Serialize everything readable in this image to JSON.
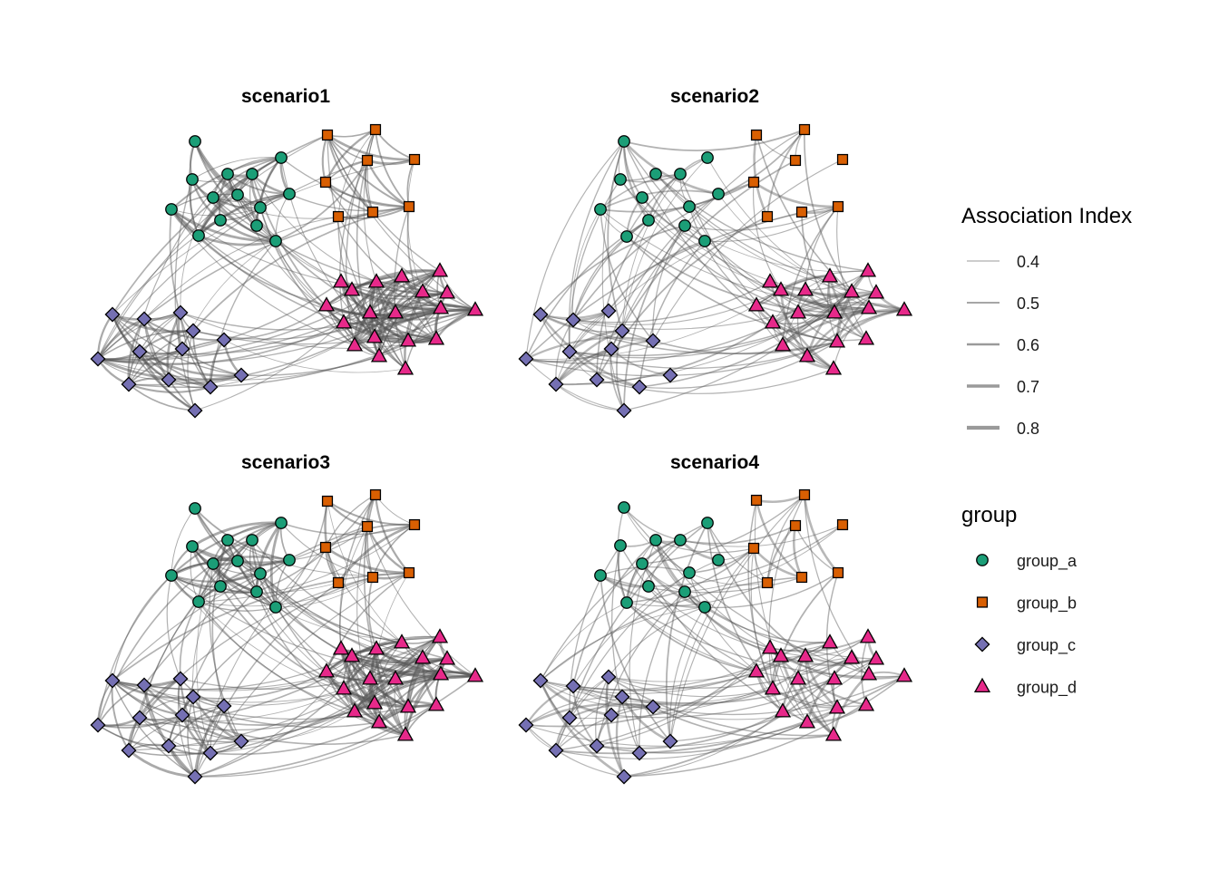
{
  "panels": [
    {
      "title": "scenario1"
    },
    {
      "title": "scenario2"
    },
    {
      "title": "scenario3"
    },
    {
      "title": "scenario4"
    }
  ],
  "legend_weight": {
    "title": "Association Index",
    "items": [
      {
        "label": "0.4",
        "value": 0.4
      },
      {
        "label": "0.5",
        "value": 0.5
      },
      {
        "label": "0.6",
        "value": 0.6
      },
      {
        "label": "0.7",
        "value": 0.7
      },
      {
        "label": "0.8",
        "value": 0.8
      }
    ]
  },
  "legend_group": {
    "title": "group",
    "items": [
      {
        "label": "group_a",
        "shape": "circle",
        "color": "#1b9e77"
      },
      {
        "label": "group_b",
        "shape": "square",
        "color": "#d95f02"
      },
      {
        "label": "group_c",
        "shape": "diamond",
        "color": "#7570b3"
      },
      {
        "label": "group_d",
        "shape": "triangle",
        "color": "#e7298a"
      }
    ]
  },
  "colors": {
    "edge": "#555555",
    "node_outline": "#000000"
  }
}
